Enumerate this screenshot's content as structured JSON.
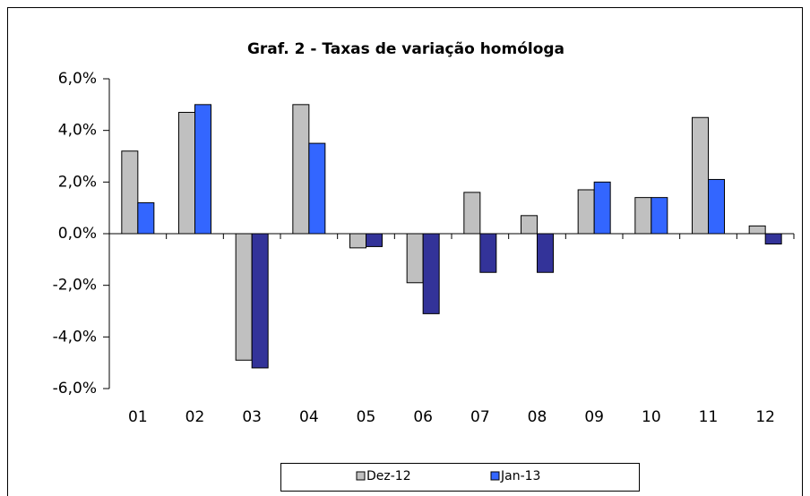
{
  "chart_data": {
    "type": "bar",
    "title": "Graf. 2 - Taxas de variação homóloga",
    "categories": [
      "01",
      "02",
      "03",
      "04",
      "05",
      "06",
      "07",
      "08",
      "09",
      "10",
      "11",
      "12"
    ],
    "series": [
      {
        "name": "Dez-12",
        "color": "#c0c0c0",
        "negative_color": "#c0c0c0",
        "values": [
          3.2,
          4.7,
          -4.9,
          5.0,
          -0.55,
          -1.9,
          1.6,
          0.7,
          1.7,
          1.4,
          4.5,
          0.3
        ]
      },
      {
        "name": "Jan-13",
        "color": "#3366ff",
        "negative_color": "#333399",
        "values": [
          1.2,
          5.0,
          -5.2,
          3.5,
          -0.5,
          -3.1,
          -1.5,
          -1.5,
          2.0,
          1.4,
          2.1,
          -0.4
        ]
      }
    ],
    "ylim": [
      -6,
      6
    ],
    "yticks": [
      {
        "value": -6,
        "label": "-6,0%"
      },
      {
        "value": -4,
        "label": "-4,0%"
      },
      {
        "value": -2,
        "label": "-2,0%"
      },
      {
        "value": 0,
        "label": "0,0%"
      },
      {
        "value": 2,
        "label": "2,0%"
      },
      {
        "value": 4,
        "label": "4,0%"
      },
      {
        "value": 6,
        "label": "6,0%"
      }
    ],
    "legend": "bottom"
  }
}
